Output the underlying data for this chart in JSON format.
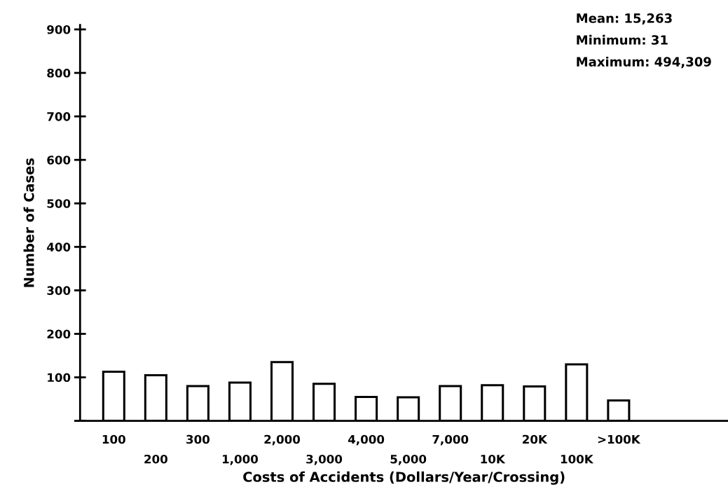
{
  "chart_data": {
    "type": "bar",
    "xlabel": "Costs of Accidents (Dollars/Year/Crossing)",
    "ylabel": "Number of Cases",
    "categories": [
      "100",
      "200",
      "300",
      "1,000",
      "2,000",
      "3,000",
      "4,000",
      "5,000",
      "7,000",
      "10K",
      "20K",
      "100K",
      ">100K"
    ],
    "values": [
      113,
      105,
      80,
      88,
      135,
      85,
      55,
      54,
      80,
      82,
      79,
      130,
      47
    ],
    "color": "#ffffff",
    "ylim": [
      0,
      910
    ],
    "yticks": [
      {
        "value": 0,
        "label": null
      },
      100,
      200,
      300,
      400,
      500,
      600,
      700,
      800,
      900
    ],
    "annotations": [
      "Mean: 15,263",
      "Minimum: 31",
      "Maximum: 494,309"
    ],
    "grid": false
  }
}
